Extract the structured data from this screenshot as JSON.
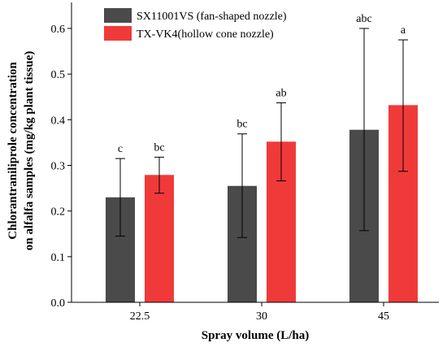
{
  "chart_data": {
    "type": "bar",
    "categories": [
      "22.5",
      "30",
      "45"
    ],
    "series": [
      {
        "name": "SX11001VS (fan-shaped nozzle)",
        "color": "#4a4a4a",
        "values": [
          0.23,
          0.255,
          0.378
        ],
        "error_low": [
          0.145,
          0.142,
          0.157
        ],
        "error_high": [
          0.315,
          0.369,
          0.6
        ],
        "labels": [
          "c",
          "bc",
          "abc"
        ]
      },
      {
        "name": "TX-VK4(hollow cone nozzle)",
        "color": "#f03a3a",
        "values": [
          0.279,
          0.352,
          0.432
        ],
        "error_low": [
          0.239,
          0.266,
          0.287
        ],
        "error_high": [
          0.318,
          0.437,
          0.575
        ],
        "labels": [
          "bc",
          "ab",
          "a"
        ]
      }
    ],
    "xlabel": "Spray volume (L/ha)",
    "ylabel_line1": "Chlorantraniliprole concentration",
    "ylabel_line2": "on alfalfa samples (mg/kg plant tissue)",
    "ylim": [
      0,
      0.65
    ],
    "yticks": [
      "0.0",
      "0.1",
      "0.2",
      "0.3",
      "0.4",
      "0.5",
      "0.6"
    ],
    "legend_position": "top-left",
    "grid": false
  }
}
